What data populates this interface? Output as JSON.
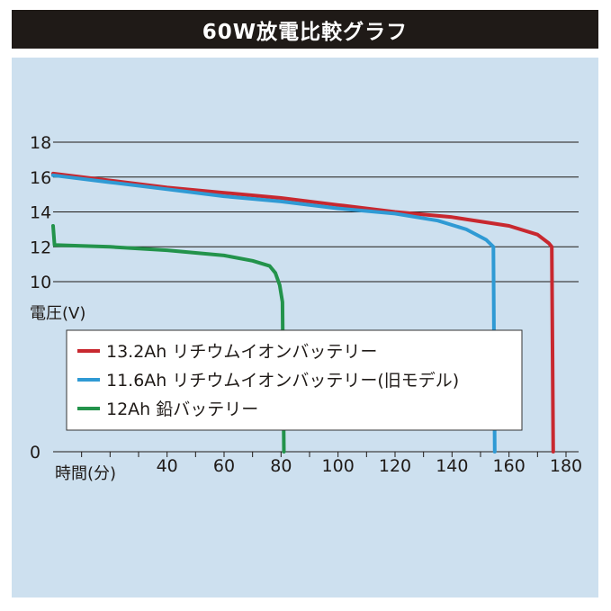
{
  "title": "60W放電比較グラフ",
  "colors": {
    "title_bg": "#1f1a17",
    "plot_bg": "#cde0ef",
    "grid": "#1f1a17"
  },
  "chart_data": {
    "type": "line",
    "title": "60W放電比較グラフ",
    "xlabel": "時間(分)",
    "ylabel": "電圧(V)",
    "xlim": [
      0,
      180
    ],
    "x_ticks": [
      40,
      60,
      80,
      100,
      120,
      140,
      160,
      180
    ],
    "y_ticks": [
      0,
      10,
      12,
      14,
      16,
      18
    ],
    "y_axis_note": "broken axis between 0 and 10",
    "grid": "horizontal lines at 10,12,14,16,18",
    "legend_position": "center",
    "series": [
      {
        "name": "13.2Ah リチウムイオンバッテリー",
        "color": "#c8282f",
        "points": [
          [
            0,
            16.2
          ],
          [
            20,
            15.8
          ],
          [
            40,
            15.4
          ],
          [
            60,
            15.1
          ],
          [
            80,
            14.8
          ],
          [
            100,
            14.4
          ],
          [
            120,
            14.0
          ],
          [
            140,
            13.7
          ],
          [
            160,
            13.2
          ],
          [
            170,
            12.7
          ],
          [
            174,
            12.2
          ],
          [
            175,
            12.0
          ],
          [
            175.5,
            0
          ]
        ]
      },
      {
        "name": "11.6Ah リチウムイオンバッテリー(旧モデル)",
        "color": "#2f9ad4",
        "points": [
          [
            0,
            16.1
          ],
          [
            20,
            15.7
          ],
          [
            40,
            15.3
          ],
          [
            60,
            14.9
          ],
          [
            80,
            14.6
          ],
          [
            100,
            14.2
          ],
          [
            120,
            13.9
          ],
          [
            135,
            13.5
          ],
          [
            145,
            13.0
          ],
          [
            152,
            12.4
          ],
          [
            154.5,
            12.0
          ],
          [
            155,
            0
          ]
        ]
      },
      {
        "name": "12Ah 鉛バッテリー",
        "color": "#23934b",
        "points": [
          [
            0,
            13.2
          ],
          [
            0.5,
            12.1
          ],
          [
            10,
            12.05
          ],
          [
            20,
            12.0
          ],
          [
            40,
            11.8
          ],
          [
            60,
            11.5
          ],
          [
            70,
            11.2
          ],
          [
            76,
            10.9
          ],
          [
            78,
            10.5
          ],
          [
            79.5,
            9.8
          ],
          [
            80.5,
            8.8
          ],
          [
            81,
            0
          ]
        ]
      }
    ]
  }
}
